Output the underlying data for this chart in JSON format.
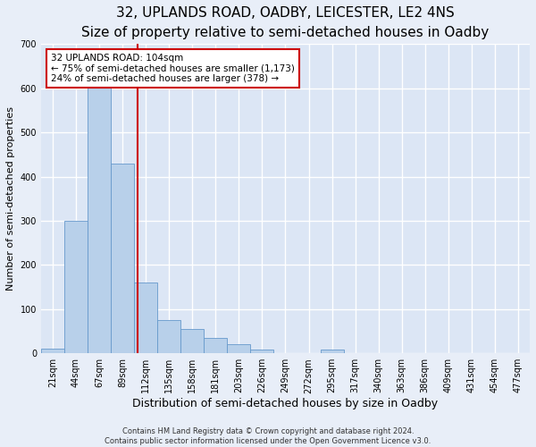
{
  "title1": "32, UPLANDS ROAD, OADBY, LEICESTER, LE2 4NS",
  "title2": "Size of property relative to semi-detached houses in Oadby",
  "xlabel": "Distribution of semi-detached houses by size in Oadby",
  "ylabel": "Number of semi-detached properties",
  "footer1": "Contains HM Land Registry data © Crown copyright and database right 2024.",
  "footer2": "Contains public sector information licensed under the Open Government Licence v3.0.",
  "bin_labels": [
    "21sqm",
    "44sqm",
    "67sqm",
    "89sqm",
    "112sqm",
    "135sqm",
    "158sqm",
    "181sqm",
    "203sqm",
    "226sqm",
    "249sqm",
    "272sqm",
    "295sqm",
    "317sqm",
    "340sqm",
    "363sqm",
    "386sqm",
    "409sqm",
    "431sqm",
    "454sqm",
    "477sqm"
  ],
  "bar_heights": [
    10,
    300,
    620,
    430,
    160,
    75,
    55,
    35,
    20,
    8,
    0,
    0,
    8,
    0,
    0,
    0,
    0,
    0,
    0,
    0,
    0
  ],
  "bar_color": "#b8d0ea",
  "bar_edge_color": "#6699cc",
  "vline_color": "#cc0000",
  "vline_x": 3.65,
  "annotation_text": "32 UPLANDS ROAD: 104sqm\n← 75% of semi-detached houses are smaller (1,173)\n24% of semi-detached houses are larger (378) →",
  "annotation_box_color": "#ffffff",
  "annotation_border_color": "#cc0000",
  "ylim": [
    0,
    700
  ],
  "yticks": [
    0,
    100,
    200,
    300,
    400,
    500,
    600,
    700
  ],
  "fig_bg_color": "#e8eef8",
  "plot_bg_color": "#dce6f5",
  "grid_color": "#ffffff",
  "title1_fontsize": 11,
  "title2_fontsize": 9,
  "xlabel_fontsize": 9,
  "ylabel_fontsize": 8,
  "annotation_fontsize": 7.5,
  "tick_fontsize": 7
}
